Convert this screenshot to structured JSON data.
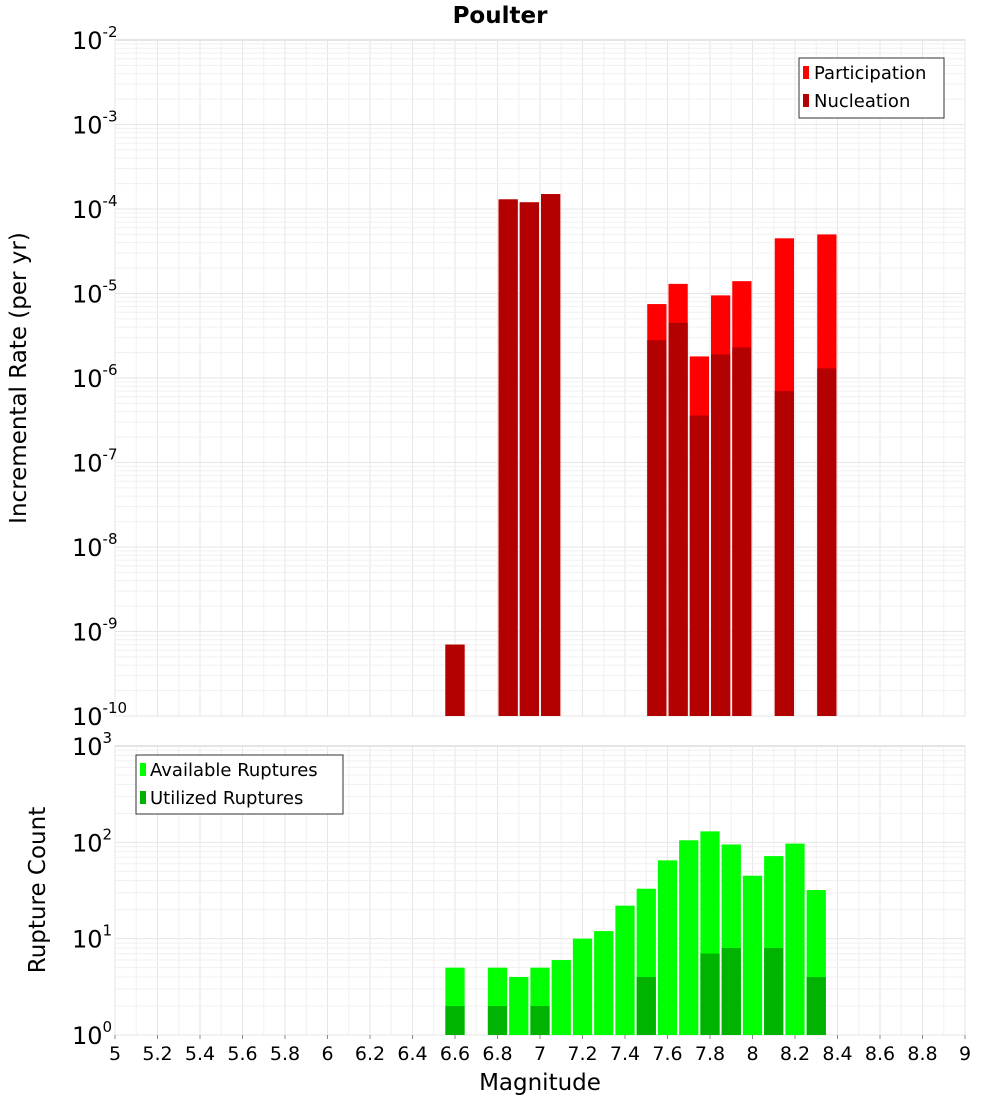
{
  "chart_data": [
    {
      "type": "bar",
      "title": "Poulter",
      "xlabel": "",
      "ylabel": "Incremental Rate (per yr)",
      "yscale": "log",
      "ylim_exponents": [
        -10,
        -2
      ],
      "xlim": [
        5,
        9
      ],
      "grid": true,
      "legend_position": "top-right",
      "series": [
        {
          "name": "Participation",
          "color": "#ff0000",
          "points": [
            {
              "x": 6.6,
              "y": 7e-10
            },
            {
              "x": 6.85,
              "y": 0.00013
            },
            {
              "x": 6.95,
              "y": 0.00012
            },
            {
              "x": 7.05,
              "y": 0.00015
            },
            {
              "x": 7.55,
              "y": 7.5e-06
            },
            {
              "x": 7.65,
              "y": 1.3e-05
            },
            {
              "x": 7.75,
              "y": 1.8e-06
            },
            {
              "x": 7.85,
              "y": 9.5e-06
            },
            {
              "x": 7.95,
              "y": 1.4e-05
            },
            {
              "x": 8.15,
              "y": 4.5e-05
            },
            {
              "x": 8.35,
              "y": 5e-05
            }
          ]
        },
        {
          "name": "Nucleation",
          "color": "#b30000",
          "points": [
            {
              "x": 6.6,
              "y": 7e-10
            },
            {
              "x": 6.85,
              "y": 0.00013
            },
            {
              "x": 6.95,
              "y": 0.00012
            },
            {
              "x": 7.05,
              "y": 0.00015
            },
            {
              "x": 7.55,
              "y": 2.8e-06
            },
            {
              "x": 7.65,
              "y": 4.5e-06
            },
            {
              "x": 7.75,
              "y": 3.6e-07
            },
            {
              "x": 7.85,
              "y": 1.9e-06
            },
            {
              "x": 7.95,
              "y": 2.3e-06
            },
            {
              "x": 8.15,
              "y": 7e-07
            },
            {
              "x": 8.35,
              "y": 1.3e-06
            }
          ]
        }
      ]
    },
    {
      "type": "bar",
      "title": "",
      "xlabel": "Magnitude",
      "ylabel": "Rupture Count",
      "yscale": "log",
      "ylim_exponents": [
        0,
        3
      ],
      "xlim": [
        5,
        9
      ],
      "grid": true,
      "legend_position": "top-left",
      "series": [
        {
          "name": "Available Ruptures",
          "color": "#00ff00",
          "points": [
            {
              "x": 6.6,
              "y": 5
            },
            {
              "x": 6.8,
              "y": 5
            },
            {
              "x": 6.9,
              "y": 4
            },
            {
              "x": 7.0,
              "y": 5
            },
            {
              "x": 7.1,
              "y": 6
            },
            {
              "x": 7.2,
              "y": 10
            },
            {
              "x": 7.3,
              "y": 12
            },
            {
              "x": 7.4,
              "y": 22
            },
            {
              "x": 7.5,
              "y": 33
            },
            {
              "x": 7.6,
              "y": 65
            },
            {
              "x": 7.7,
              "y": 105
            },
            {
              "x": 7.8,
              "y": 130
            },
            {
              "x": 7.9,
              "y": 95
            },
            {
              "x": 8.0,
              "y": 45
            },
            {
              "x": 8.1,
              "y": 72
            },
            {
              "x": 8.2,
              "y": 97
            },
            {
              "x": 8.3,
              "y": 32
            }
          ]
        },
        {
          "name": "Utilized Ruptures",
          "color": "#00b300",
          "points": [
            {
              "x": 6.6,
              "y": 2
            },
            {
              "x": 6.8,
              "y": 2
            },
            {
              "x": 6.9,
              "y": 1
            },
            {
              "x": 7.0,
              "y": 2
            },
            {
              "x": 7.5,
              "y": 4
            },
            {
              "x": 7.6,
              "y": 1
            },
            {
              "x": 7.7,
              "y": 1
            },
            {
              "x": 7.8,
              "y": 7
            },
            {
              "x": 7.9,
              "y": 8
            },
            {
              "x": 8.1,
              "y": 8
            },
            {
              "x": 8.3,
              "y": 4
            }
          ]
        }
      ]
    }
  ],
  "x_ticks": [
    "5",
    "5.2",
    "5.4",
    "5.6",
    "5.8",
    "6",
    "6.2",
    "6.4",
    "6.6",
    "6.8",
    "7",
    "7.2",
    "7.4",
    "7.6",
    "7.8",
    "8",
    "8.2",
    "8.4",
    "8.6",
    "8.8",
    "9"
  ],
  "top_y_ticks": [
    {
      "base": "10",
      "exp": "-2"
    },
    {
      "base": "10",
      "exp": "-3"
    },
    {
      "base": "10",
      "exp": "-4"
    },
    {
      "base": "10",
      "exp": "-5"
    },
    {
      "base": "10",
      "exp": "-6"
    },
    {
      "base": "10",
      "exp": "-7"
    },
    {
      "base": "10",
      "exp": "-8"
    },
    {
      "base": "10",
      "exp": "-9"
    },
    {
      "base": "10",
      "exp": "-10"
    }
  ],
  "bottom_y_ticks": [
    {
      "base": "10",
      "exp": "3"
    },
    {
      "base": "10",
      "exp": "2"
    },
    {
      "base": "10",
      "exp": "1"
    },
    {
      "base": "10",
      "exp": "0"
    }
  ]
}
